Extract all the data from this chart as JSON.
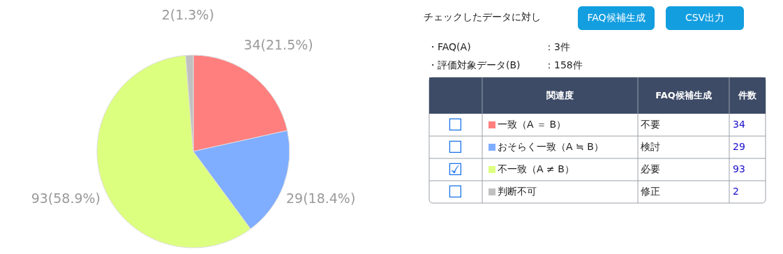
{
  "chart_data": [
    {
      "type": "pie",
      "categories": [
        "一致（A ＝ B）",
        "おそらく一致（A ≒ B）",
        "不一致（A ≠ B）",
        "判断不可"
      ],
      "values": [
        34,
        29,
        93,
        2
      ],
      "colors": [
        "#ff7f7f",
        "#7fadff",
        "#ddff7f",
        "#c0c0c0"
      ],
      "value_labels": [
        "34(21.5%)",
        "29(18.4%)",
        "93(58.9%)",
        "2(1.3%)"
      ],
      "legend": "right",
      "annotations": [
        {
          "text": "☐",
          "x": "一致（A ＝ B）"
        },
        {
          "text": "☐",
          "x": "おそらく一致（A ≒ B）"
        },
        {
          "text": "☑",
          "x": "不一致（A ≠ B）"
        },
        {
          "text": "☐",
          "x": "判断不可"
        }
      ]
    },
    {
      "type": "other",
      "title": "チェックしたデータに対し",
      "annotations": [
        "FAQ候補生成",
        "CSV出力",
        "・FAQ(A)",
        "：3件",
        "・評価対象データ(B)",
        "：158件",
        "関連度",
        "FAQ候補生成",
        "件数",
        "不要",
        "検討",
        "必要",
        "修正",
        "34",
        "29",
        "93",
        "2"
      ]
    }
  ]
}
